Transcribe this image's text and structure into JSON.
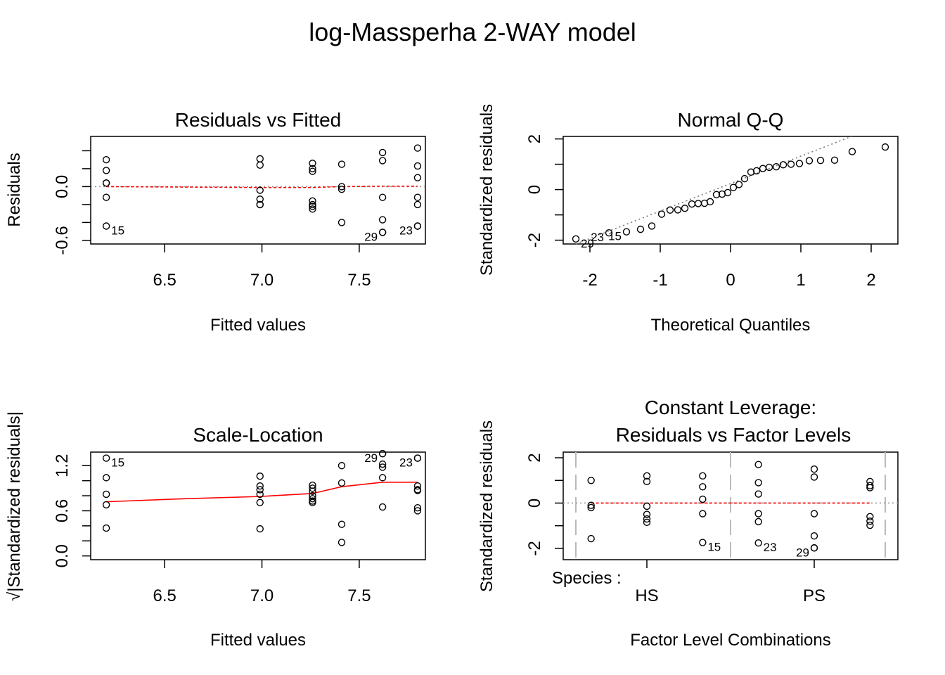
{
  "figure": {
    "title": "log-Massperha 2-WAY model"
  },
  "chart_data": [
    {
      "id": "rvf",
      "type": "scatter",
      "title": "Residuals vs Fitted",
      "xlabel": "Fitted values",
      "ylabel": "Residuals",
      "xlim": [
        6.12,
        7.84
      ],
      "ylim": [
        -0.64,
        0.56
      ],
      "xticks": [
        6.5,
        7.0,
        7.5
      ],
      "xtick_labels": [
        "6.5",
        "7.0",
        "7.5"
      ],
      "yticks": [
        -0.6,
        -0.4,
        -0.2,
        0.0,
        0.2,
        0.4
      ],
      "ytick_labels": [
        "-0.6",
        "",
        "",
        "0.0",
        "",
        ""
      ],
      "reference_line": 0,
      "x": [
        6.2,
        6.2,
        6.2,
        6.2,
        6.2,
        6.2,
        6.99,
        6.99,
        6.99,
        6.99,
        6.99,
        6.99,
        7.26,
        7.26,
        7.26,
        7.26,
        7.26,
        7.26,
        7.26,
        7.41,
        7.41,
        7.41,
        7.41,
        7.62,
        7.62,
        7.62,
        7.62,
        7.62,
        7.62,
        7.8,
        7.8,
        7.8,
        7.8,
        7.8,
        7.8,
        7.8
      ],
      "y": [
        0.3,
        0.18,
        0.04,
        -0.12,
        -0.44,
        0.04,
        0.31,
        0.24,
        -0.04,
        -0.14,
        -0.2,
        -0.2,
        0.26,
        0.2,
        0.17,
        -0.16,
        -0.22,
        -0.25,
        -0.2,
        0.25,
        0.0,
        -0.03,
        -0.4,
        0.38,
        0.29,
        -0.12,
        -0.37,
        -0.51,
        -0.51,
        0.43,
        0.23,
        0.1,
        -0.12,
        -0.2,
        -0.44,
        -0.44
      ],
      "smooth_x": [
        6.2,
        6.6,
        6.99,
        7.26,
        7.41,
        7.62,
        7.8
      ],
      "smooth_y": [
        0.0,
        -0.005,
        -0.01,
        -0.01,
        0.0,
        0.005,
        0.005
      ],
      "labeled": [
        {
          "i": 4,
          "label": "15",
          "side": "right"
        },
        {
          "i": 28,
          "label": "29",
          "side": "left"
        },
        {
          "i": 35,
          "label": "23",
          "side": "left"
        }
      ]
    },
    {
      "id": "qq",
      "type": "scatter",
      "title": "Normal Q-Q",
      "xlabel": "Theoretical Quantiles",
      "ylabel": "Standardized residuals",
      "xlim": [
        -2.38,
        2.38
      ],
      "ylim": [
        -2.15,
        2.1
      ],
      "xticks": [
        -2,
        -1,
        0,
        1,
        2
      ],
      "xtick_labels": [
        "-2",
        "-1",
        "0",
        "1",
        "2"
      ],
      "yticks": [
        -2,
        -1,
        0,
        1,
        2
      ],
      "ytick_labels": [
        "-2",
        "",
        "0",
        "",
        "2"
      ],
      "x": [
        -2.2,
        -1.73,
        -1.48,
        -1.28,
        -1.12,
        -0.98,
        -0.86,
        -0.75,
        -0.65,
        -0.55,
        -0.46,
        -0.37,
        -0.29,
        -0.2,
        -0.12,
        -0.04,
        0.04,
        0.12,
        0.2,
        0.29,
        0.37,
        0.46,
        0.55,
        0.65,
        0.75,
        0.86,
        0.98,
        1.12,
        1.28,
        1.48,
        1.73,
        2.2
      ],
      "y": [
        -1.95,
        -1.71,
        -1.67,
        -1.57,
        -1.44,
        -0.97,
        -0.81,
        -0.8,
        -0.74,
        -0.57,
        -0.55,
        -0.54,
        -0.48,
        -0.2,
        -0.18,
        -0.12,
        0.08,
        0.2,
        0.43,
        0.69,
        0.74,
        0.83,
        0.88,
        0.9,
        0.98,
        1.0,
        1.03,
        1.14,
        1.15,
        1.16,
        1.5,
        1.68
      ],
      "ref_line": {
        "x": [
          -2.2,
          1.72
        ],
        "y": [
          -2.15,
          2.1
        ]
      },
      "labeled": [
        {
          "i": 0,
          "label": "29",
          "side": "right"
        },
        {
          "i": 1,
          "label": "23",
          "side": "left"
        },
        {
          "i": 2,
          "label": "15",
          "side": "left"
        }
      ]
    },
    {
      "id": "sl",
      "type": "scatter",
      "title": "Scale-Location",
      "xlabel": "Fitted values",
      "ylabel": "√|Standardized residuals|",
      "xlim": [
        6.12,
        7.84
      ],
      "ylim": [
        -0.05,
        1.38
      ],
      "xticks": [
        6.5,
        7.0,
        7.5
      ],
      "xtick_labels": [
        "6.5",
        "7.0",
        "7.5"
      ],
      "yticks": [
        0.0,
        0.2,
        0.4,
        0.6,
        0.8,
        1.0,
        1.2
      ],
      "ytick_labels": [
        "0.0",
        "",
        "",
        "0.6",
        "",
        "",
        "1.2"
      ],
      "x": [
        6.2,
        6.2,
        6.2,
        6.2,
        6.2,
        6.99,
        6.99,
        6.99,
        6.99,
        6.99,
        6.99,
        7.26,
        7.26,
        7.26,
        7.26,
        7.26,
        7.26,
        7.26,
        7.41,
        7.41,
        7.41,
        7.41,
        7.62,
        7.62,
        7.62,
        7.62,
        7.62,
        7.62,
        7.8,
        7.8,
        7.8,
        7.8,
        7.8,
        7.8,
        7.8
      ],
      "y": [
        1.3,
        1.04,
        0.82,
        0.68,
        0.37,
        1.06,
        0.93,
        0.88,
        0.82,
        0.71,
        0.36,
        0.94,
        0.9,
        0.86,
        0.8,
        0.76,
        0.73,
        0.71,
        1.2,
        0.97,
        0.42,
        0.18,
        1.36,
        1.22,
        1.18,
        1.04,
        0.65,
        1.36,
        1.3,
        1.3,
        0.93,
        0.88,
        0.64,
        0.6,
        0.87
      ],
      "smooth_x": [
        6.2,
        6.6,
        6.99,
        7.26,
        7.41,
        7.62,
        7.8
      ],
      "smooth_y": [
        0.72,
        0.76,
        0.79,
        0.83,
        0.92,
        0.98,
        0.98
      ],
      "labeled": [
        {
          "i": 0,
          "label": "15",
          "side": "right"
        },
        {
          "i": 22,
          "label": "29",
          "side": "left"
        },
        {
          "i": 28,
          "label": "23",
          "side": "left"
        }
      ]
    },
    {
      "id": "cl",
      "type": "scatter",
      "title": "Constant Leverage:",
      "subtitle": "Residuals vs Factor Levels",
      "xlabel": "Factor Level Combinations",
      "ylabel": "Standardized residuals",
      "factor_label": "Species :",
      "xlim": [
        0.0,
        6.0
      ],
      "ylim": [
        -2.5,
        2.25
      ],
      "x_groups": [
        {
          "label": "HS",
          "x": 1.5
        },
        {
          "label": "PS",
          "x": 4.5
        }
      ],
      "group_boundaries": [
        0.0,
        3.0,
        6.0
      ],
      "yticks": [
        -2,
        -1,
        0,
        1,
        2
      ],
      "ytick_labels": [
        "-2",
        "",
        "0",
        "",
        "2"
      ],
      "reference_line": 0,
      "x": [
        0.5,
        0.5,
        0.5,
        0.5,
        1.5,
        1.5,
        1.5,
        1.5,
        1.5,
        1.5,
        2.5,
        2.5,
        2.5,
        2.5,
        2.5,
        3.5,
        3.5,
        3.5,
        3.5,
        3.5,
        3.5,
        4.5,
        4.5,
        4.5,
        4.5,
        4.5,
        4.5,
        5.5,
        5.5,
        5.5,
        5.5,
        5.5,
        5.5
      ],
      "y": [
        1.0,
        -0.1,
        -0.2,
        -1.57,
        1.2,
        0.95,
        -0.14,
        -0.5,
        -0.7,
        -0.85,
        1.2,
        0.72,
        0.17,
        -0.47,
        -1.74,
        1.7,
        0.9,
        0.4,
        -0.47,
        -0.82,
        -1.76,
        1.5,
        1.15,
        -0.47,
        -1.45,
        -1.98,
        -1.98,
        0.95,
        0.77,
        0.68,
        -0.6,
        -0.8,
        -0.98
      ],
      "smooth_x": [
        0.5,
        1.5,
        2.5,
        3.5,
        4.5,
        5.5
      ],
      "smooth_y": [
        0.0,
        0.0,
        0.0,
        0.0,
        0.0,
        0.0
      ],
      "labeled": [
        {
          "i": 14,
          "label": "15",
          "side": "right"
        },
        {
          "i": 20,
          "label": "23",
          "side": "right"
        },
        {
          "i": 25,
          "label": "29",
          "side": "left"
        }
      ]
    }
  ]
}
